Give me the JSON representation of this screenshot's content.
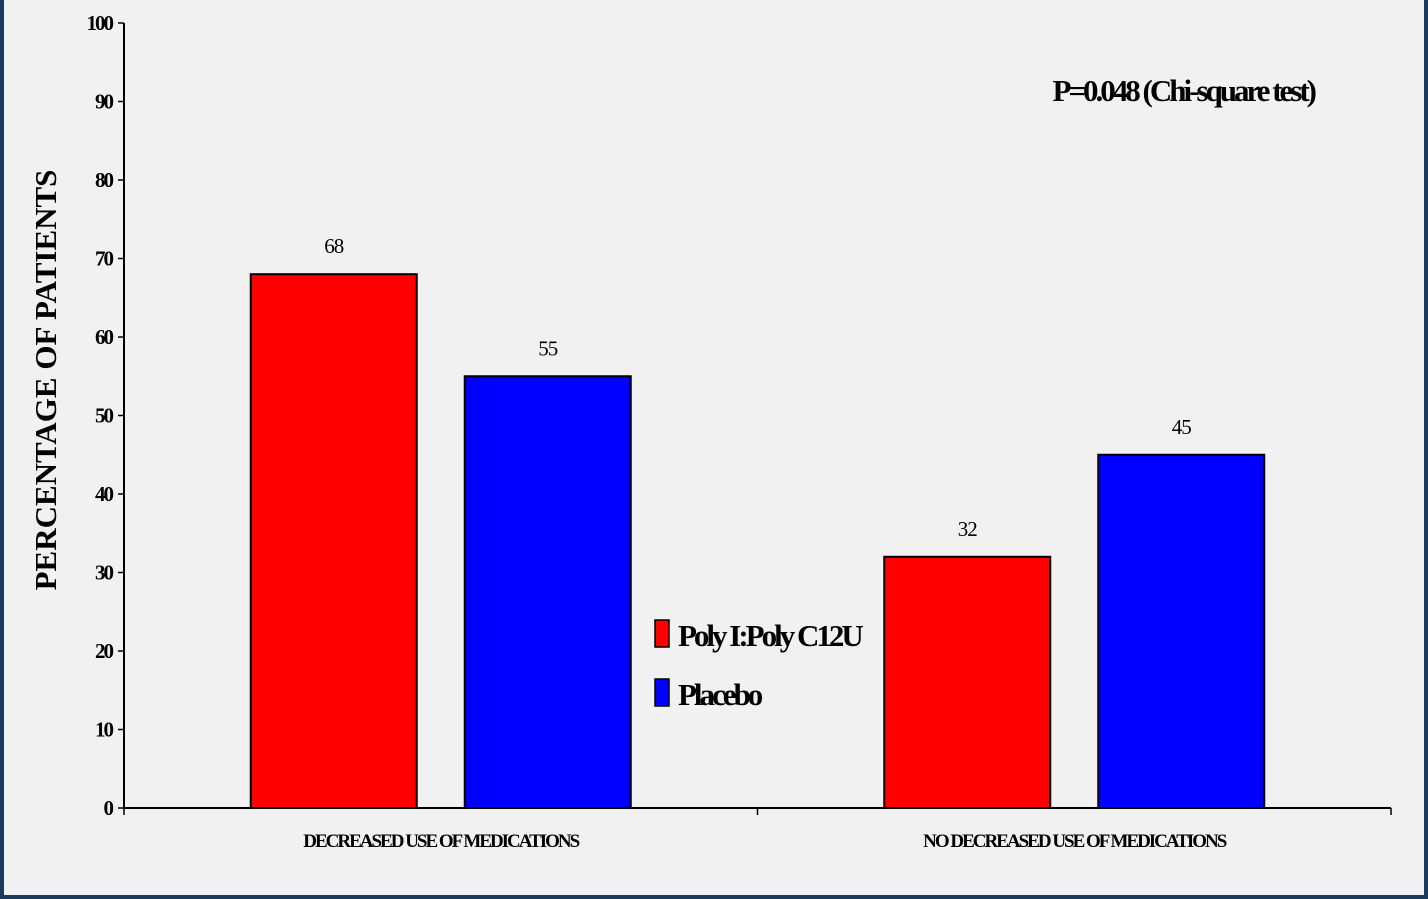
{
  "chart_data": {
    "type": "bar",
    "categories": [
      "DECREASED USE OF MEDICATIONS",
      "NO DECREASED USE OF MEDICATIONS"
    ],
    "series": [
      {
        "name": "Poly I:Poly C12U",
        "values": [
          68,
          32
        ],
        "color": "#ff0000"
      },
      {
        "name": "Placebo",
        "values": [
          55,
          45
        ],
        "color": "#0000ff"
      }
    ],
    "data_labels": [
      [
        "68",
        "32"
      ],
      [
        "55",
        "45"
      ]
    ],
    "ylabel": "PERCENTAGE OF PATIENTS",
    "xlabel": "",
    "ylim": [
      0,
      100
    ],
    "yticks": [
      0,
      10,
      20,
      30,
      40,
      50,
      60,
      70,
      80,
      90,
      100
    ],
    "annotation": "P=0.048 (Chi-square test)",
    "legend_position": "center",
    "grid": false
  }
}
